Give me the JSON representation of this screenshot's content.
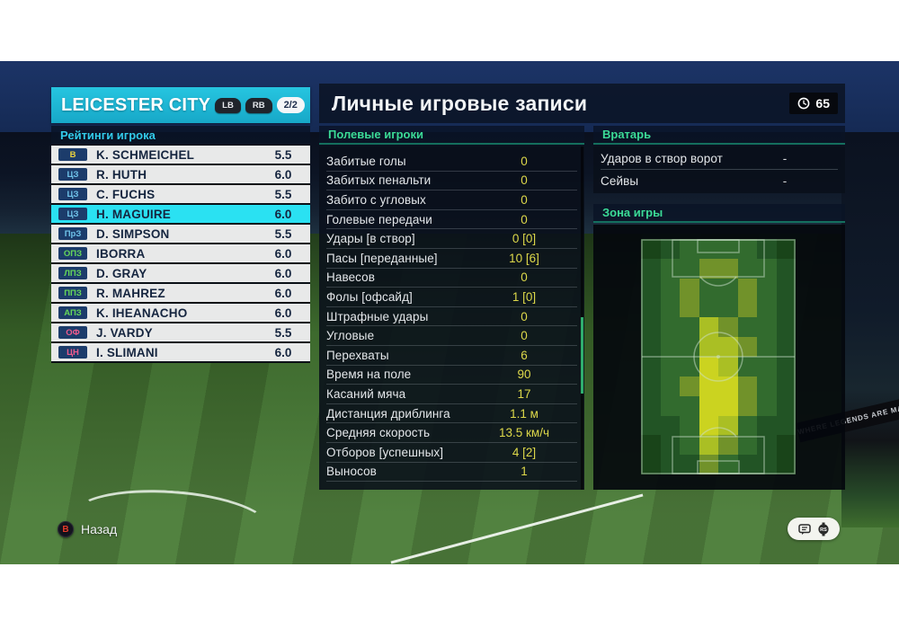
{
  "team_header": {
    "name": "LEICESTER CITY",
    "button_hints": [
      "LB",
      "RB"
    ],
    "page_indicator": "2/2"
  },
  "ratings": {
    "header": "Рейтинги игрока",
    "players": [
      {
        "pos": "В",
        "pos_type": "gk",
        "name": "K. SCHMEICHEL",
        "rating": "5.5",
        "selected": false
      },
      {
        "pos": "ЦЗ",
        "pos_type": "def",
        "name": "R. HUTH",
        "rating": "6.0",
        "selected": false
      },
      {
        "pos": "ЦЗ",
        "pos_type": "def",
        "name": "C. FUCHS",
        "rating": "5.5",
        "selected": false
      },
      {
        "pos": "ЦЗ",
        "pos_type": "def",
        "name": "H. MAGUIRE",
        "rating": "6.0",
        "selected": true
      },
      {
        "pos": "ПрЗ",
        "pos_type": "def",
        "name": "D. SIMPSON",
        "rating": "5.5",
        "selected": false
      },
      {
        "pos": "ОПЗ",
        "pos_type": "mid",
        "name": "IBORRA",
        "rating": "6.0",
        "selected": false
      },
      {
        "pos": "ЛПЗ",
        "pos_type": "mid",
        "name": "D. GRAY",
        "rating": "6.0",
        "selected": false
      },
      {
        "pos": "ППЗ",
        "pos_type": "mid",
        "name": "R. MAHREZ",
        "rating": "6.0",
        "selected": false
      },
      {
        "pos": "АПЗ",
        "pos_type": "mid",
        "name": "K. IHEANACHO",
        "rating": "6.0",
        "selected": false
      },
      {
        "pos": "ОФ",
        "pos_type": "fwd",
        "name": "J. VARDY",
        "rating": "5.5",
        "selected": false
      },
      {
        "pos": "ЦН",
        "pos_type": "fwd",
        "name": "I. SLIMANI",
        "rating": "6.0",
        "selected": false
      }
    ]
  },
  "main": {
    "title": "Личные игровые записи",
    "match_time": "65",
    "field_players": {
      "header": "Полевые игроки",
      "stats": [
        {
          "label": "Забитые голы",
          "value": "0"
        },
        {
          "label": "Забитых пенальти",
          "value": "0"
        },
        {
          "label": "Забито с угловых",
          "value": "0"
        },
        {
          "label": "Голевые передачи",
          "value": "0"
        },
        {
          "label": "Удары [в створ]",
          "value": "0 [0]"
        },
        {
          "label": "Пасы [переданные]",
          "value": "10 [6]"
        },
        {
          "label": "Навесов",
          "value": "0"
        },
        {
          "label": "Фолы [офсайд]",
          "value": "1 [0]"
        },
        {
          "label": "Штрафные удары",
          "value": "0"
        },
        {
          "label": "Угловые",
          "value": "0"
        },
        {
          "label": "Перехваты",
          "value": "6"
        },
        {
          "label": "Время на поле",
          "value": "90"
        },
        {
          "label": "Касаний мяча",
          "value": "17"
        },
        {
          "label": "Дистанция дриблинга",
          "value": "1.1 м"
        },
        {
          "label": "Средняя скорость",
          "value": "13.5 км/ч"
        },
        {
          "label": "Отборов [успешных]",
          "value": "4 [2]"
        },
        {
          "label": "Выносов",
          "value": "1"
        }
      ]
    },
    "goalkeeper": {
      "header": "Вратарь",
      "stats": [
        {
          "label": "Ударов в створ ворот",
          "value": "-"
        },
        {
          "label": "Сейвы",
          "value": "-"
        }
      ]
    },
    "zone": {
      "header": "Зона игры"
    }
  },
  "chart_data": {
    "type": "heatmap",
    "title": "Зона игры",
    "orientation": "vertical-football-pitch",
    "rows": 12,
    "cols": 8,
    "intensity_scale": [
      "#194419",
      "#225425",
      "#326b2e",
      "#71922a",
      "#aabf24",
      "#cbd320"
    ],
    "grid": [
      [
        0,
        1,
        2,
        2,
        2,
        2,
        1,
        0
      ],
      [
        1,
        2,
        2,
        3,
        3,
        2,
        2,
        1
      ],
      [
        1,
        2,
        3,
        2,
        2,
        3,
        2,
        1
      ],
      [
        1,
        2,
        3,
        2,
        2,
        3,
        2,
        1
      ],
      [
        1,
        2,
        2,
        4,
        3,
        2,
        2,
        1
      ],
      [
        1,
        2,
        2,
        4,
        4,
        3,
        2,
        1
      ],
      [
        1,
        2,
        2,
        5,
        4,
        2,
        2,
        1
      ],
      [
        1,
        2,
        3,
        5,
        5,
        3,
        2,
        1
      ],
      [
        1,
        2,
        2,
        5,
        5,
        3,
        2,
        1
      ],
      [
        1,
        1,
        2,
        5,
        4,
        2,
        1,
        1
      ],
      [
        0,
        1,
        2,
        4,
        3,
        2,
        1,
        0
      ],
      [
        0,
        1,
        1,
        3,
        2,
        1,
        1,
        0
      ]
    ]
  },
  "footer": {
    "back_button": "B",
    "back_label": "Назад",
    "icons": [
      "chat-icon",
      "right-stick-icon"
    ]
  },
  "background": {
    "ad_text": "WHERE LEGENDS ARE MADE"
  },
  "colors": {
    "accent_cyan": "#1fb9d6",
    "selected_row": "#2ae1f2",
    "section_green": "#3bdb97",
    "ratings_header_cyan": "#32cbea",
    "stat_value_yellow": "#ddd84a",
    "badge_navy": "#1c3c6b",
    "positions": {
      "gk": "#e8d23f",
      "def": "#6fc3ea",
      "mid": "#66d75a",
      "fwd": "#ee5b8d"
    }
  }
}
